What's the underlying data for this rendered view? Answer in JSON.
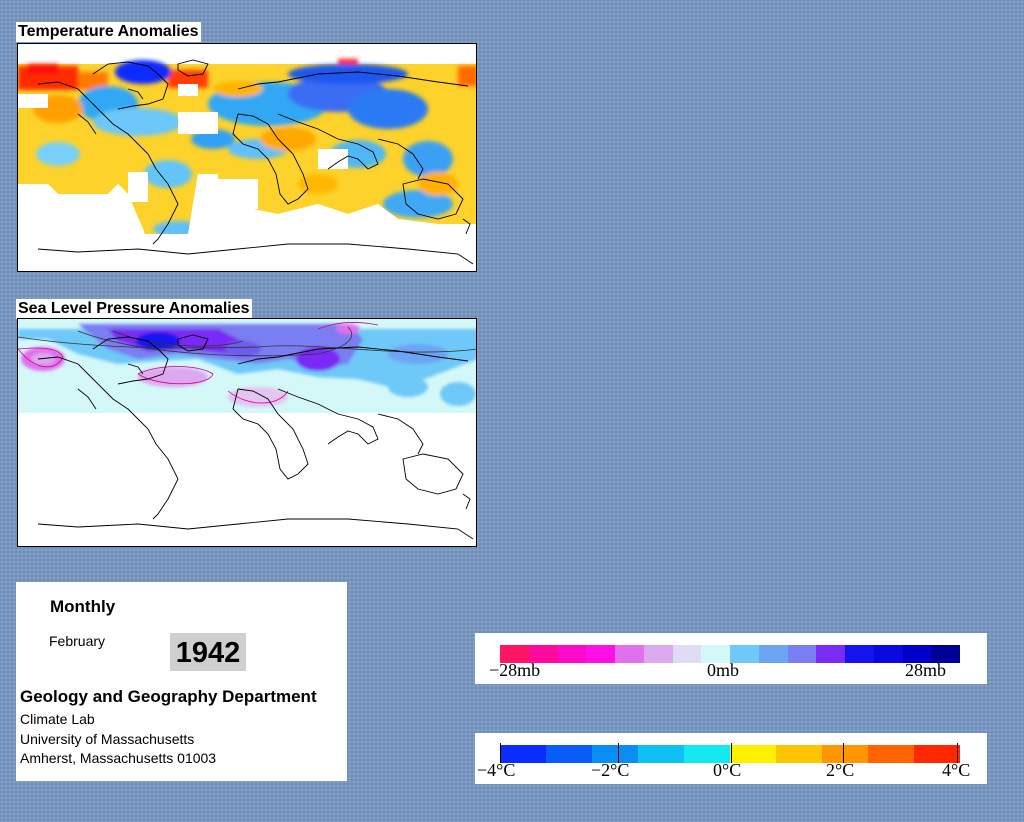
{
  "temperature_map": {
    "title": "Temperature Anomalies"
  },
  "pressure_map": {
    "title": "Sea Level Pressure Anomalies"
  },
  "info": {
    "frequency": "Monthly",
    "month": "February",
    "year": "1942",
    "department": "Geology and Geography Department",
    "lab": "Climate Lab",
    "university": "University of Massachusetts",
    "address": "Amherst, Massachusetts 01003"
  },
  "pressure_legend": {
    "labels": [
      "−28mb",
      "0mb",
      "28mb"
    ],
    "colors": [
      "#ff1466",
      "#ff0a9c",
      "#ff0acc",
      "#ff10e6",
      "#e070ec",
      "#dca8f0",
      "#e0dcf4",
      "#d4f8f8",
      "#6ec8f8",
      "#6ca4f4",
      "#7a7ef0",
      "#7a2cf4",
      "#1414f0",
      "#0a0ae0",
      "#0000c8",
      "#000096"
    ]
  },
  "temperature_legend": {
    "labels": [
      "−4°C",
      "−2°C",
      "0°C",
      "2°C",
      "4°C"
    ],
    "colors": [
      "#0a2cff",
      "#0a5cf8",
      "#0a8ef4",
      "#10c0f4",
      "#14e8f0",
      "#fff000",
      "#ffc400",
      "#ff9600",
      "#ff6400",
      "#ff2800"
    ]
  }
}
